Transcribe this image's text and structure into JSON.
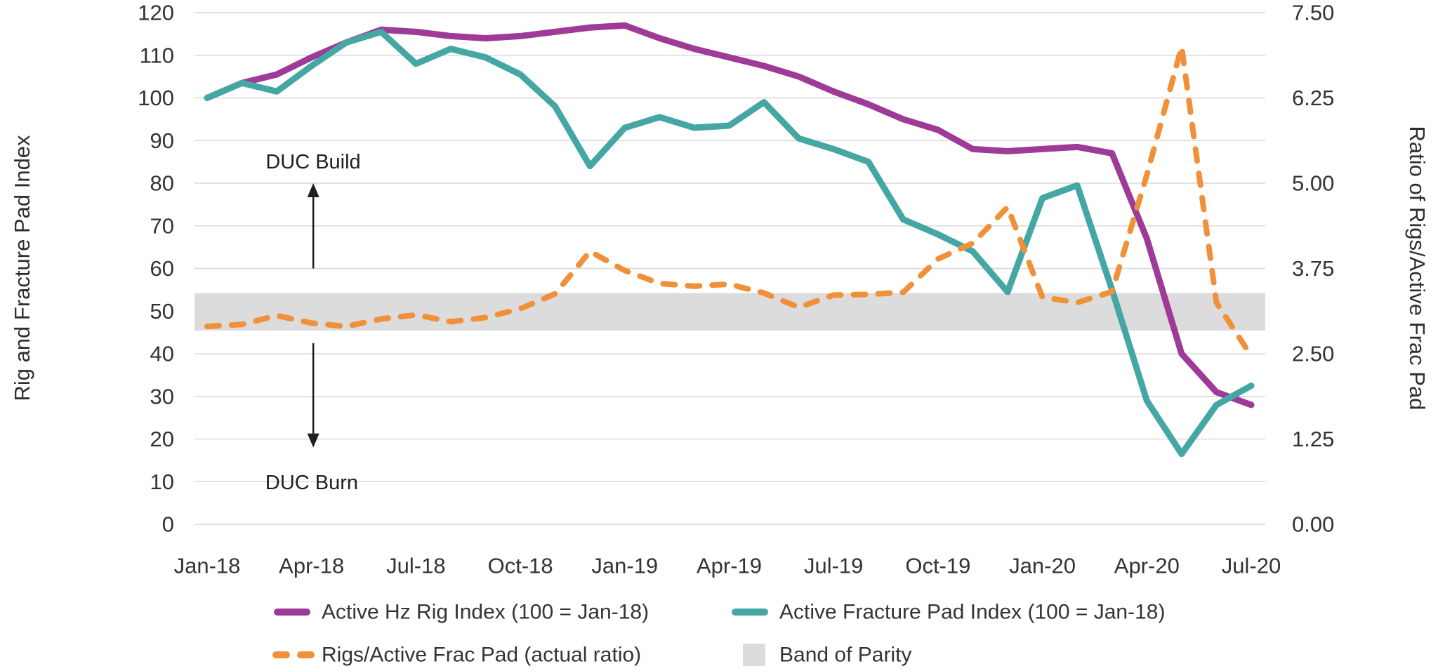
{
  "chart_data": {
    "type": "line",
    "title": "",
    "x": [
      "Jan-18",
      "Feb-18",
      "Mar-18",
      "Apr-18",
      "May-18",
      "Jun-18",
      "Jul-18",
      "Aug-18",
      "Sep-18",
      "Oct-18",
      "Nov-18",
      "Dec-18",
      "Jan-19",
      "Feb-19",
      "Mar-19",
      "Apr-19",
      "May-19",
      "Jun-19",
      "Jul-19",
      "Aug-19",
      "Sep-19",
      "Oct-19",
      "Nov-19",
      "Dec-19",
      "Jan-20",
      "Feb-20",
      "Mar-20",
      "Apr-20",
      "May-20",
      "Jun-20",
      "Jul-20"
    ],
    "x_axis_ticks_shown": [
      "Jan-18",
      "Apr-18",
      "Jul-18",
      "Oct-18",
      "Jan-19",
      "Apr-19",
      "Jul-19",
      "Oct-19",
      "Jan-20",
      "Apr-20",
      "Jul-20"
    ],
    "left_axis": {
      "title": "Rig and Fracture Pad Index",
      "min": 0,
      "max": 120,
      "tick_step": 10,
      "tick_labels": [
        "120",
        "110",
        "100",
        "90",
        "80",
        "70",
        "60",
        "50",
        "40",
        "30",
        "20",
        "10",
        "0"
      ]
    },
    "right_axis": {
      "title": "Ratio of Rigs/Active Frac Pad",
      "min": 0,
      "max": 7.5,
      "tick_labels": [
        "7.50",
        "6.25",
        "5.00",
        "3.75",
        "2.50",
        "1.25",
        "0.00"
      ]
    },
    "grid": "horizontal",
    "legend_position": "bottom",
    "series": [
      {
        "name": "Active Hz Rig Index (100 = Jan-18)",
        "axis": "left",
        "style": "solid",
        "color": "#9E3A97",
        "values": [
          100,
          103.5,
          105.5,
          109.5,
          113,
          116,
          115.5,
          114.5,
          114,
          114.5,
          115.5,
          116.5,
          117,
          114,
          111.5,
          109.5,
          107.5,
          105,
          101.5,
          98.5,
          95,
          92.5,
          88,
          87.5,
          88,
          88.5,
          87,
          67,
          40,
          31,
          28
        ]
      },
      {
        "name": "Active Fracture Pad Index (100 = Jan-18)",
        "axis": "left",
        "style": "solid",
        "color": "#45A7A3",
        "values": [
          100,
          103.5,
          101.5,
          107.5,
          113,
          115.5,
          108,
          111.5,
          109.5,
          105.5,
          98,
          84,
          93,
          95.5,
          93,
          93.5,
          99,
          90.5,
          88,
          85,
          71.5,
          68,
          64,
          54.5,
          76.5,
          79.5,
          55,
          29,
          16.5,
          28,
          32.5
        ]
      },
      {
        "name": "Rigs/Active Frac Pad (actual ratio)",
        "axis": "right",
        "style": "dashed",
        "color": "#F0913A",
        "values": [
          2.9,
          2.93,
          3.06,
          2.95,
          2.9,
          3.01,
          3.07,
          2.97,
          3.03,
          3.16,
          3.38,
          4.0,
          3.72,
          3.53,
          3.49,
          3.52,
          3.39,
          3.18,
          3.36,
          3.37,
          3.4,
          3.89,
          4.12,
          4.65,
          3.33,
          3.25,
          3.41,
          5.12,
          7.0,
          3.25,
          2.47
        ]
      }
    ],
    "band_of_parity": {
      "label": "Band of Parity",
      "color": "#DCDCDC",
      "ratio_range": [
        2.84,
        3.39
      ],
      "left_axis_range": [
        45.4,
        54.2
      ]
    },
    "annotations": [
      {
        "id": "duc-build",
        "text": "DUC Build",
        "text_at": {
          "month_index": 3.05,
          "value": 85
        },
        "arrow": {
          "direction": "up",
          "x_month_index": 3.05,
          "from_value": 60,
          "to_value": 80
        }
      },
      {
        "id": "duc-burn",
        "text": "DUC Burn",
        "text_at": {
          "month_index": 3.0,
          "value": 10
        },
        "arrow": {
          "direction": "down",
          "x_month_index": 3.05,
          "from_value": 42.5,
          "to_value": 18
        }
      }
    ]
  },
  "legend": {
    "items": [
      {
        "label": "Active Hz Rig Index (100 = Jan-18)",
        "swatch": "solid-line",
        "color": "#9E3A97"
      },
      {
        "label": "Active Fracture Pad Index (100 = Jan-18)",
        "swatch": "solid-line",
        "color": "#45A7A3"
      },
      {
        "label": "Rigs/Active Frac Pad (actual ratio)",
        "swatch": "dashed-line",
        "color": "#F0913A"
      },
      {
        "label": "Band of Parity",
        "swatch": "filled-square",
        "color": "#DCDCDC"
      }
    ]
  },
  "colors": {
    "grid": "#D9D9D9",
    "tick_text": "#333333",
    "annotation": "#1F1F1F",
    "background": "#FFFFFF"
  }
}
